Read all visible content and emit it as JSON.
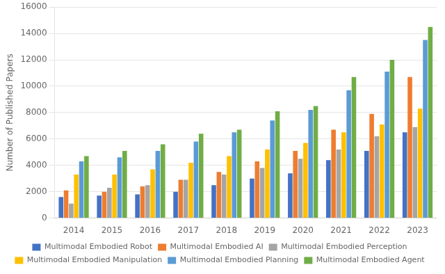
{
  "chart_data": {
    "type": "bar",
    "categories": [
      "2014",
      "2015",
      "2016",
      "2017",
      "2018",
      "2019",
      "2020",
      "2021",
      "2022",
      "2023"
    ],
    "series": [
      {
        "name": "Multimodal Embodied Robot",
        "color": "#4472C4",
        "values": [
          1600,
          1700,
          1800,
          2000,
          2500,
          3000,
          3400,
          4400,
          5100,
          6500
        ]
      },
      {
        "name": "Multimodal Embodied AI",
        "color": "#ED7D31",
        "values": [
          2100,
          2000,
          2400,
          2900,
          3500,
          4300,
          5100,
          6700,
          7900,
          10700
        ]
      },
      {
        "name": "Multimodal Embodied Perception",
        "color": "#A5A5A5",
        "values": [
          1100,
          2300,
          2500,
          2900,
          3300,
          3800,
          4500,
          5200,
          6200,
          6900
        ]
      },
      {
        "name": "Multimodal Embodied Manipulation",
        "color": "#FFC000",
        "values": [
          3300,
          3300,
          3700,
          4200,
          4700,
          5200,
          5700,
          6500,
          7100,
          8300
        ]
      },
      {
        "name": "Multimodal Embodied Planning",
        "color": "#5B9BD5",
        "values": [
          4300,
          4600,
          5100,
          5800,
          6500,
          7400,
          8200,
          9700,
          11100,
          13500
        ]
      },
      {
        "name": "Multimodal Embodied Agent",
        "color": "#70AD47",
        "values": [
          4700,
          5100,
          5600,
          6400,
          6700,
          8100,
          8500,
          10700,
          12000,
          14500
        ]
      }
    ],
    "ylabel": "Number of Published Papers",
    "ylim": [
      0,
      16000
    ],
    "yticks": [
      0,
      2000,
      4000,
      6000,
      8000,
      10000,
      12000,
      14000,
      16000
    ],
    "grid": true,
    "legend": "bottom"
  }
}
